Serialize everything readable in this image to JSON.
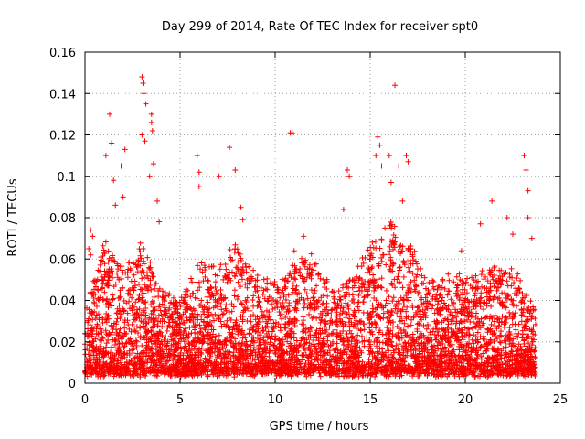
{
  "chart_data": {
    "type": "scatter",
    "title": "Day 299 of 2014, Rate Of TEC Index for receiver spt0",
    "xlabel": "GPS time / hours",
    "ylabel": "ROTI / TECUs",
    "xlim": [
      0,
      25
    ],
    "ylim": [
      0,
      0.16
    ],
    "x_ticks": [
      0,
      5,
      10,
      15,
      20,
      25
    ],
    "y_ticks": [
      0,
      0.02,
      0.04,
      0.06,
      0.08,
      0.1,
      0.12,
      0.14,
      0.16
    ],
    "x_tick_labels": [
      "0",
      "5",
      "10",
      "15",
      "20",
      "25"
    ],
    "y_tick_labels": [
      "0",
      "0.02",
      "0.04",
      "0.06",
      "0.08",
      "0.1",
      "0.12",
      "0.14",
      "0.16"
    ],
    "grid": true,
    "marker": "+",
    "color": "#ff0000",
    "series": [
      {
        "name": "ROTI",
        "points": [
          [
            0.2,
            0.065
          ],
          [
            0.3,
            0.062
          ],
          [
            0.4,
            0.071
          ],
          [
            0.3,
            0.074
          ],
          [
            1.1,
            0.11
          ],
          [
            1.3,
            0.13
          ],
          [
            1.4,
            0.116
          ],
          [
            1.5,
            0.098
          ],
          [
            1.6,
            0.086
          ],
          [
            1.9,
            0.105
          ],
          [
            2.1,
            0.113
          ],
          [
            2.0,
            0.09
          ],
          [
            3.0,
            0.148
          ],
          [
            3.05,
            0.145
          ],
          [
            3.1,
            0.14
          ],
          [
            3.2,
            0.135
          ],
          [
            3.0,
            0.12
          ],
          [
            3.15,
            0.117
          ],
          [
            3.5,
            0.13
          ],
          [
            3.5,
            0.126
          ],
          [
            3.55,
            0.122
          ],
          [
            3.6,
            0.106
          ],
          [
            3.4,
            0.1
          ],
          [
            3.8,
            0.088
          ],
          [
            3.9,
            0.078
          ],
          [
            5.9,
            0.11
          ],
          [
            6.0,
            0.102
          ],
          [
            6.0,
            0.095
          ],
          [
            7.0,
            0.105
          ],
          [
            7.05,
            0.1
          ],
          [
            7.6,
            0.114
          ],
          [
            7.9,
            0.103
          ],
          [
            8.2,
            0.085
          ],
          [
            8.3,
            0.079
          ],
          [
            10.8,
            0.121
          ],
          [
            10.9,
            0.121
          ],
          [
            11.0,
            0.064
          ],
          [
            11.5,
            0.071
          ],
          [
            13.6,
            0.084
          ],
          [
            13.8,
            0.103
          ],
          [
            13.9,
            0.1
          ],
          [
            15.4,
            0.119
          ],
          [
            15.5,
            0.115
          ],
          [
            15.3,
            0.11
          ],
          [
            15.6,
            0.105
          ],
          [
            16.0,
            0.11
          ],
          [
            16.1,
            0.097
          ],
          [
            16.5,
            0.105
          ],
          [
            16.3,
            0.144
          ],
          [
            16.9,
            0.11
          ],
          [
            17.0,
            0.107
          ],
          [
            16.7,
            0.088
          ],
          [
            19.8,
            0.064
          ],
          [
            20.8,
            0.077
          ],
          [
            21.4,
            0.088
          ],
          [
            22.2,
            0.08
          ],
          [
            22.5,
            0.072
          ],
          [
            23.1,
            0.11
          ],
          [
            23.2,
            0.103
          ],
          [
            23.3,
            0.093
          ],
          [
            23.3,
            0.08
          ],
          [
            23.5,
            0.07
          ]
        ],
        "density_profile": {
          "hours": [
            0,
            1,
            2,
            3,
            4,
            5,
            6,
            7,
            8,
            9,
            10,
            11,
            12,
            13,
            14,
            15,
            16,
            17,
            18,
            19,
            20,
            21,
            22,
            23,
            23.7
          ],
          "typical_max_roti": [
            0.03,
            0.06,
            0.05,
            0.06,
            0.04,
            0.035,
            0.05,
            0.05,
            0.06,
            0.045,
            0.045,
            0.05,
            0.055,
            0.04,
            0.045,
            0.06,
            0.07,
            0.06,
            0.045,
            0.045,
            0.045,
            0.05,
            0.05,
            0.045,
            0.03
          ],
          "floor_roti": 0.005
        }
      }
    ]
  }
}
